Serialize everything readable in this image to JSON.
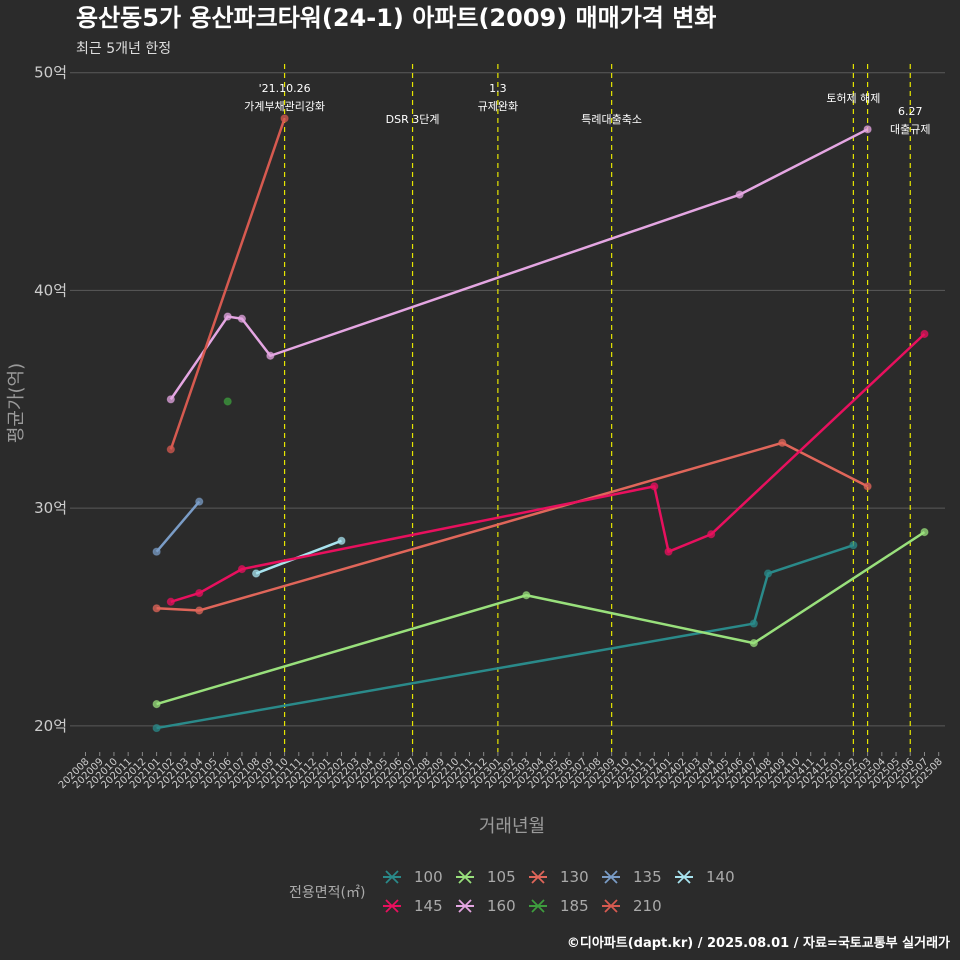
{
  "chart_data": {
    "type": "line",
    "title": "용산동5가 용산파크타워(24-1) 아파트(2009) 매매가격 변화",
    "subtitle": "최근 5개년 한정",
    "xlabel": "거래년월",
    "ylabel": "평균가(억)",
    "ylim": [
      18.8,
      50.4
    ],
    "yticks": [
      20,
      30,
      40,
      50
    ],
    "ytick_labels": [
      "20억",
      "30억",
      "40억",
      "50억"
    ],
    "categories": [
      "202008",
      "202009",
      "202010",
      "202011",
      "202012",
      "202101",
      "202102",
      "202103",
      "202104",
      "202105",
      "202106",
      "202107",
      "202108",
      "202109",
      "202110",
      "202111",
      "202112",
      "202201",
      "202202",
      "202203",
      "202204",
      "202205",
      "202206",
      "202207",
      "202208",
      "202209",
      "202210",
      "202211",
      "202212",
      "202301",
      "202302",
      "202303",
      "202304",
      "202305",
      "202306",
      "202307",
      "202308",
      "202309",
      "202310",
      "202311",
      "202312",
      "202401",
      "202402",
      "202403",
      "202404",
      "202405",
      "202406",
      "202407",
      "202408",
      "202409",
      "202410",
      "202411",
      "202412",
      "202501",
      "202502",
      "202503",
      "202504",
      "202505",
      "202506",
      "202507",
      "202508"
    ],
    "events": [
      {
        "x": "202110",
        "label": "'21.10.26\n가계부채관리강화"
      },
      {
        "x": "202207",
        "label": "DSR 3단계"
      },
      {
        "x": "202301",
        "label": "1.3\n규제완화"
      },
      {
        "x": "202309",
        "label": "특례대출축소"
      },
      {
        "x": "202502",
        "label": "토허제 해제"
      },
      {
        "x": "202503",
        "label": ""
      },
      {
        "x": "202506",
        "label": "6.27\n대출규제"
      }
    ],
    "legend_title": "전용면적(㎡)",
    "series": [
      {
        "name": "100",
        "color": "#2a8a8a",
        "points": [
          [
            "202101",
            19.9
          ],
          [
            "202407",
            24.7
          ],
          [
            "202408",
            27.0
          ],
          [
            "202502",
            28.3
          ]
        ]
      },
      {
        "name": "105",
        "color": "#99e07c",
        "points": [
          [
            "202101",
            21.0
          ],
          [
            "202303",
            26.0
          ],
          [
            "202407",
            23.8
          ],
          [
            "202507",
            28.9
          ]
        ]
      },
      {
        "name": "130",
        "color": "#e0665a",
        "points": [
          [
            "202101",
            25.4
          ],
          [
            "202104",
            25.3
          ],
          [
            "202409",
            33.0
          ],
          [
            "202503",
            31.0
          ]
        ]
      },
      {
        "name": "135",
        "color": "#7a9cc6",
        "points": [
          [
            "202101",
            28.0
          ],
          [
            "202104",
            30.3
          ]
        ]
      },
      {
        "name": "140",
        "color": "#a8e3ef",
        "points": [
          [
            "202108",
            27.0
          ],
          [
            "202202",
            28.5
          ]
        ]
      },
      {
        "name": "145",
        "color": "#e8105e",
        "points": [
          [
            "202102",
            25.7
          ],
          [
            "202104",
            26.1
          ],
          [
            "202107",
            27.2
          ],
          [
            "202312",
            31.0
          ],
          [
            "202401",
            28.0
          ],
          [
            "202404",
            28.8
          ],
          [
            "202507",
            38.0
          ]
        ]
      },
      {
        "name": "160",
        "color": "#e4a6e2",
        "points": [
          [
            "202102",
            35.0
          ],
          [
            "202106",
            38.8
          ],
          [
            "202107",
            38.7
          ],
          [
            "202109",
            37.0
          ],
          [
            "202406",
            44.4
          ],
          [
            "202503",
            47.4
          ]
        ]
      },
      {
        "name": "185",
        "color": "#3e9d3e",
        "points": [
          [
            "202106",
            34.9
          ]
        ]
      },
      {
        "name": "210",
        "color": "#d65a50",
        "points": [
          [
            "202102",
            32.7
          ],
          [
            "202110",
            47.9
          ]
        ]
      }
    ]
  },
  "caption": "©디아파트(dapt.kr) / 2025.08.01 / 자료=국토교통부 실거래가"
}
